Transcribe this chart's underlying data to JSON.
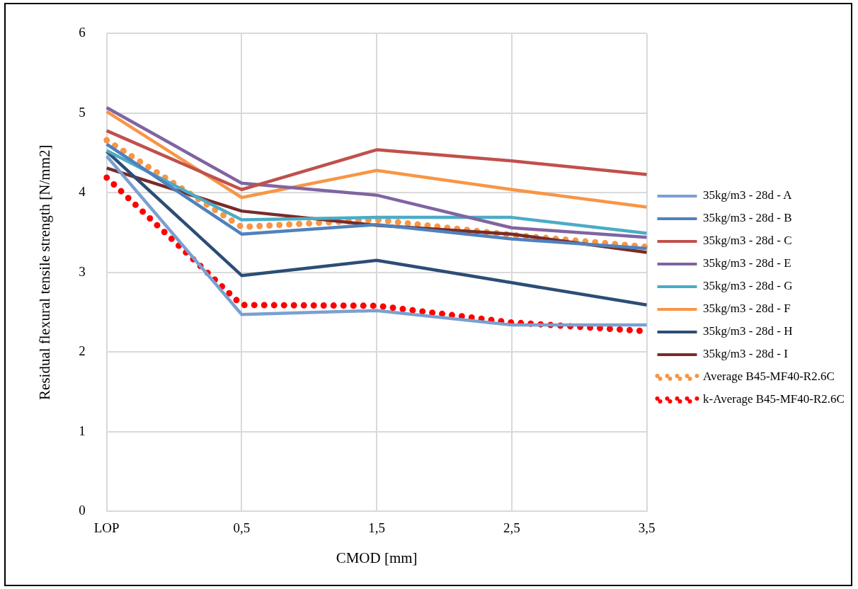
{
  "chart_data": {
    "type": "line",
    "xlabel": "CMOD [mm]",
    "ylabel": "Residual flexural tensile strength [N/mm2]",
    "categories": [
      "LOP",
      "0,5",
      "1,5",
      "2,5",
      "3,5"
    ],
    "ylim": [
      0,
      6
    ],
    "yticks": [
      0,
      1,
      2,
      3,
      4,
      5,
      6
    ],
    "grid": true,
    "legend": "right",
    "marker": "none",
    "line_style": "solid",
    "series": [
      {
        "name": "35kg/m3 - 28d - A",
        "color": "#7aa0d0",
        "values": [
          4.46,
          2.47,
          2.52,
          2.34,
          2.34
        ]
      },
      {
        "name": "35kg/m3 - 28d - B",
        "color": "#4f81bd",
        "values": [
          4.61,
          3.48,
          3.6,
          3.42,
          3.3
        ]
      },
      {
        "name": "35kg/m3 - 28d - C",
        "color": "#c0504d",
        "values": [
          4.78,
          4.04,
          4.54,
          4.4,
          4.23
        ]
      },
      {
        "name": "35kg/m3 - 28d - E",
        "color": "#8064a2",
        "values": [
          5.07,
          4.12,
          3.97,
          3.56,
          3.44
        ]
      },
      {
        "name": "35kg/m3 - 28d - G",
        "color": "#4bacc6",
        "values": [
          4.53,
          3.66,
          3.69,
          3.69,
          3.49
        ]
      },
      {
        "name": "35kg/m3 - 28d - F",
        "color": "#f79646",
        "values": [
          5.02,
          3.94,
          4.28,
          4.04,
          3.82
        ]
      },
      {
        "name": "35kg/m3 - 28d - H",
        "color": "#2c4d75",
        "values": [
          4.52,
          2.96,
          3.15,
          2.87,
          2.59
        ]
      },
      {
        "name": "35kg/m3 - 28d - I",
        "color": "#772c2a",
        "values": [
          4.31,
          3.77,
          3.59,
          3.48,
          3.25
        ]
      },
      {
        "name": "Average B45-MF40-R2.6C",
        "color": "#f79646",
        "line_style": "dotted",
        "values": [
          4.66,
          3.57,
          3.66,
          3.47,
          3.32
        ]
      },
      {
        "name": "k-Average B45-MF40-R2.6C",
        "color": "#ff0000",
        "line_style": "dotted",
        "values": [
          4.19,
          2.59,
          2.58,
          2.37,
          2.26
        ]
      }
    ]
  }
}
